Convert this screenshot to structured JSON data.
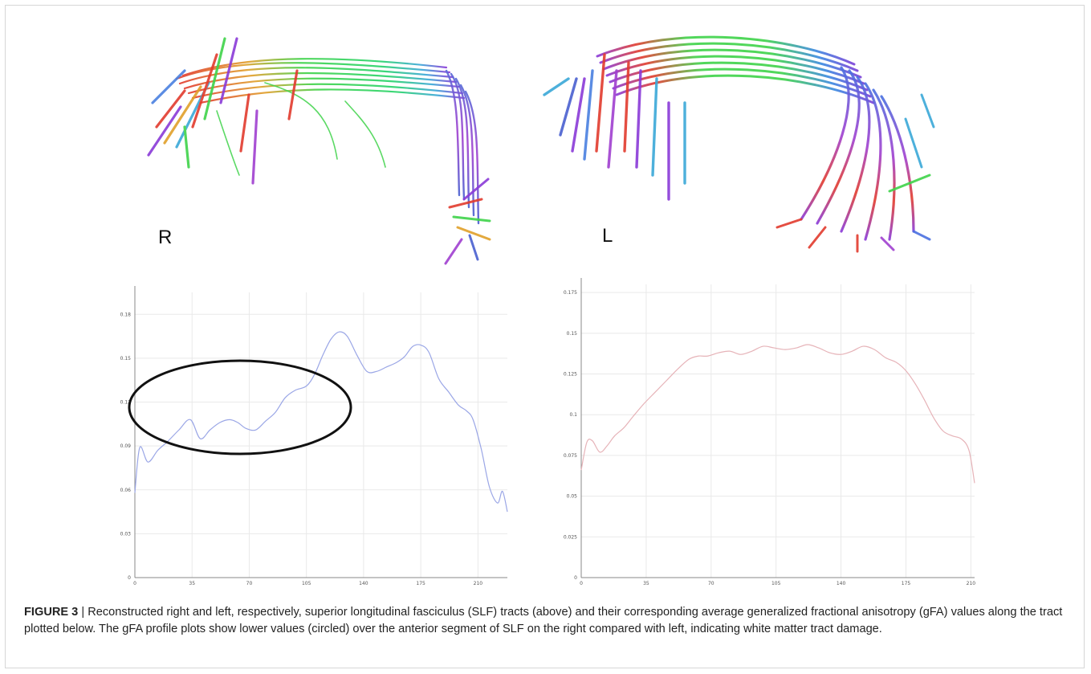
{
  "labels": {
    "right": "R",
    "left": "L"
  },
  "caption": {
    "label": "FIGURE 3",
    "separator": " | ",
    "text": "Reconstructed right and left, respectively, superior longitudinal fasciculus (SLF) tracts (above) and their corresponding average generalized fractional anisotropy (gFA) values along the tract plotted below. The gFA profile plots show lower values (circled) over the anterior segment of SLF on the right compared with left, indicating white matter tract damage."
  },
  "chart_data": [
    {
      "type": "line",
      "title": "",
      "xlabel": "",
      "ylabel": "",
      "xlim": [
        0,
        228
      ],
      "ylim": [
        0,
        0.195
      ],
      "x_ticks": [
        "0",
        "35",
        "70",
        "105",
        "140",
        "175",
        "210"
      ],
      "y_ticks": [
        "0",
        "0.03",
        "0.06",
        "0.09",
        "0.12",
        "0.15",
        "0.18"
      ],
      "grid": true,
      "line_color": "#9aa6e6",
      "annotation": "ellipse (circled region, x≈8–128)",
      "series": [
        {
          "x": [
            0,
            3,
            8,
            14,
            20,
            27,
            34,
            40,
            46,
            52,
            58,
            63,
            68,
            74,
            80,
            86,
            92,
            98,
            105,
            110,
            115,
            120,
            125,
            130,
            136,
            142,
            148,
            154,
            160,
            165,
            170,
            175,
            180,
            186,
            192,
            198,
            203,
            207,
            212,
            217,
            222,
            225,
            228
          ],
          "y": [
            0.058,
            0.089,
            0.079,
            0.087,
            0.093,
            0.101,
            0.108,
            0.095,
            0.101,
            0.106,
            0.108,
            0.106,
            0.102,
            0.101,
            0.107,
            0.113,
            0.123,
            0.128,
            0.131,
            0.139,
            0.152,
            0.163,
            0.168,
            0.165,
            0.152,
            0.141,
            0.141,
            0.144,
            0.147,
            0.151,
            0.158,
            0.159,
            0.154,
            0.136,
            0.127,
            0.118,
            0.114,
            0.108,
            0.088,
            0.062,
            0.051,
            0.059,
            0.045
          ]
        }
      ]
    },
    {
      "type": "line",
      "title": "",
      "xlabel": "",
      "ylabel": "",
      "xlim": [
        0,
        212
      ],
      "ylim": [
        0,
        0.18
      ],
      "x_ticks": [
        "0",
        "35",
        "70",
        "105",
        "140",
        "175",
        "210"
      ],
      "y_ticks": [
        "0",
        "0.025",
        "0.05",
        "0.075",
        "0.1",
        "0.125",
        "0.15",
        "0.175"
      ],
      "grid": true,
      "line_color": "#e6b3b8",
      "series": [
        {
          "x": [
            0,
            3,
            6,
            10,
            14,
            18,
            23,
            28,
            34,
            40,
            46,
            52,
            58,
            63,
            68,
            74,
            80,
            86,
            92,
            98,
            104,
            110,
            116,
            122,
            128,
            134,
            140,
            146,
            152,
            158,
            164,
            170,
            175,
            180,
            185,
            190,
            195,
            200,
            205,
            209,
            212
          ],
          "y": [
            0.066,
            0.083,
            0.084,
            0.077,
            0.081,
            0.087,
            0.092,
            0.099,
            0.107,
            0.114,
            0.121,
            0.128,
            0.134,
            0.136,
            0.136,
            0.138,
            0.139,
            0.137,
            0.139,
            0.142,
            0.141,
            0.14,
            0.141,
            0.143,
            0.141,
            0.138,
            0.137,
            0.139,
            0.142,
            0.14,
            0.135,
            0.132,
            0.127,
            0.119,
            0.109,
            0.098,
            0.09,
            0.087,
            0.085,
            0.078,
            0.058
          ]
        }
      ]
    }
  ]
}
